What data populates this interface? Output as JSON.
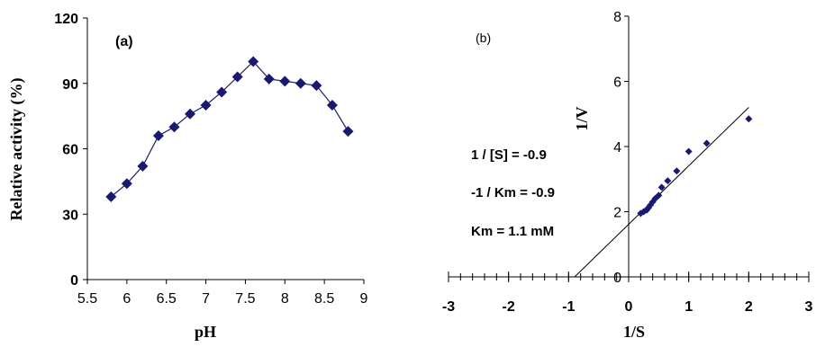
{
  "chart_data": [
    {
      "type": "line",
      "panel_label": "(a)",
      "xlabel": "pH",
      "ylabel": "Relative activity (%)",
      "xlim": [
        5.5,
        9
      ],
      "ylim": [
        0,
        120
      ],
      "x_ticks": [
        "5.5",
        "6",
        "6.5",
        "7",
        "7.5",
        "8",
        "8.5",
        "9"
      ],
      "y_ticks": [
        "0",
        "30",
        "60",
        "90",
        "120"
      ],
      "marker": "diamond",
      "color": "#191970",
      "x": [
        5.8,
        6.0,
        6.2,
        6.4,
        6.6,
        6.8,
        7.0,
        7.2,
        7.4,
        7.6,
        7.8,
        8.0,
        8.2,
        8.4,
        8.6,
        8.8
      ],
      "y": [
        38,
        44,
        52,
        66,
        70,
        76,
        80,
        86,
        93,
        100,
        92,
        91,
        90,
        89,
        80,
        68
      ]
    },
    {
      "type": "scatter",
      "panel_label": "(b)",
      "xlabel": "1/S",
      "ylabel": "1/V",
      "xlim": [
        -3,
        3
      ],
      "ylim": [
        0,
        8
      ],
      "x_ticks": [
        "-3",
        "-2",
        "-1",
        "0",
        "1",
        "2",
        "3"
      ],
      "y_ticks": [
        "0",
        "2",
        "4",
        "6",
        "8"
      ],
      "marker": "diamond",
      "color": "#191970",
      "x": [
        0.2,
        0.25,
        0.3,
        0.33,
        0.36,
        0.4,
        0.44,
        0.5,
        0.55,
        0.65,
        0.8,
        1.0,
        1.3,
        2.0
      ],
      "y": [
        1.95,
        2.0,
        2.05,
        2.12,
        2.2,
        2.3,
        2.4,
        2.5,
        2.75,
        2.95,
        3.25,
        3.85,
        4.1,
        4.85
      ],
      "fit_line": {
        "x": [
          -0.9,
          2.0
        ],
        "y": [
          0.0,
          5.2
        ]
      },
      "annotations": [
        "1 / [S] = -0.9",
        "-1 / Km = -0.9",
        "Km = 1.1 mM"
      ]
    }
  ]
}
